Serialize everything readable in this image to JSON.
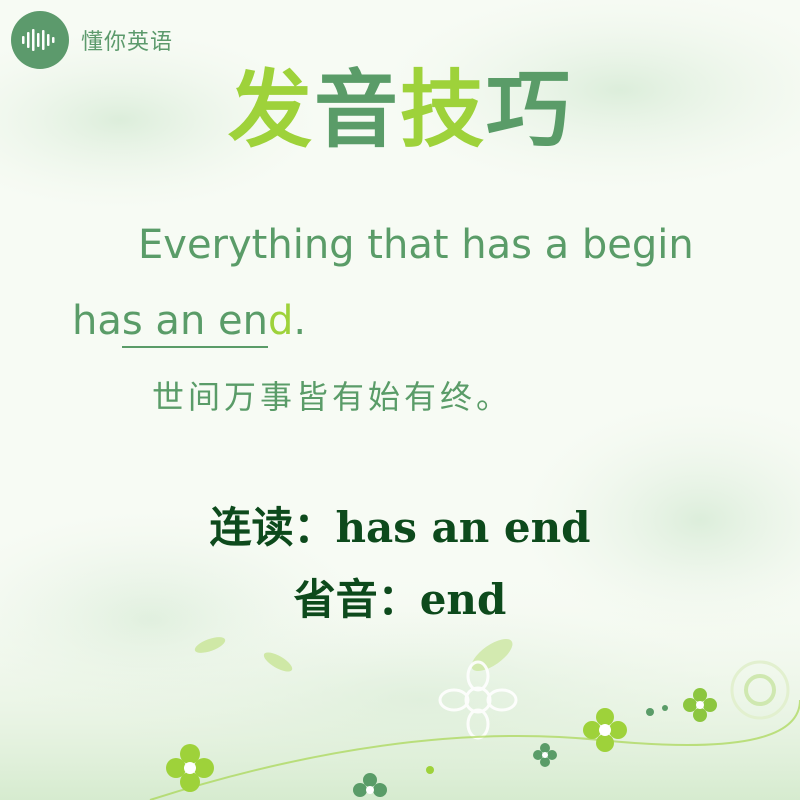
{
  "brand": {
    "logo_icon": "soundwave-icon",
    "name": "懂你英语"
  },
  "title": {
    "char1": "发",
    "char2": "音",
    "char3": "技",
    "char4": "巧"
  },
  "sentence": {
    "line1": "Everything that has a begin",
    "line2_part1": "ha",
    "line2_linked": "s an en",
    "line2_elided": "d",
    "line2_end": "."
  },
  "translation": "世间万事皆有始有终。",
  "notes": {
    "linking_label": "连读：",
    "linking_value": "has an end",
    "elision_label": "省音：",
    "elision_value": "end"
  },
  "colors": {
    "primary_green": "#5a9c68",
    "accent_lime": "#9ed23a",
    "dark_green": "#0d4a1c"
  }
}
